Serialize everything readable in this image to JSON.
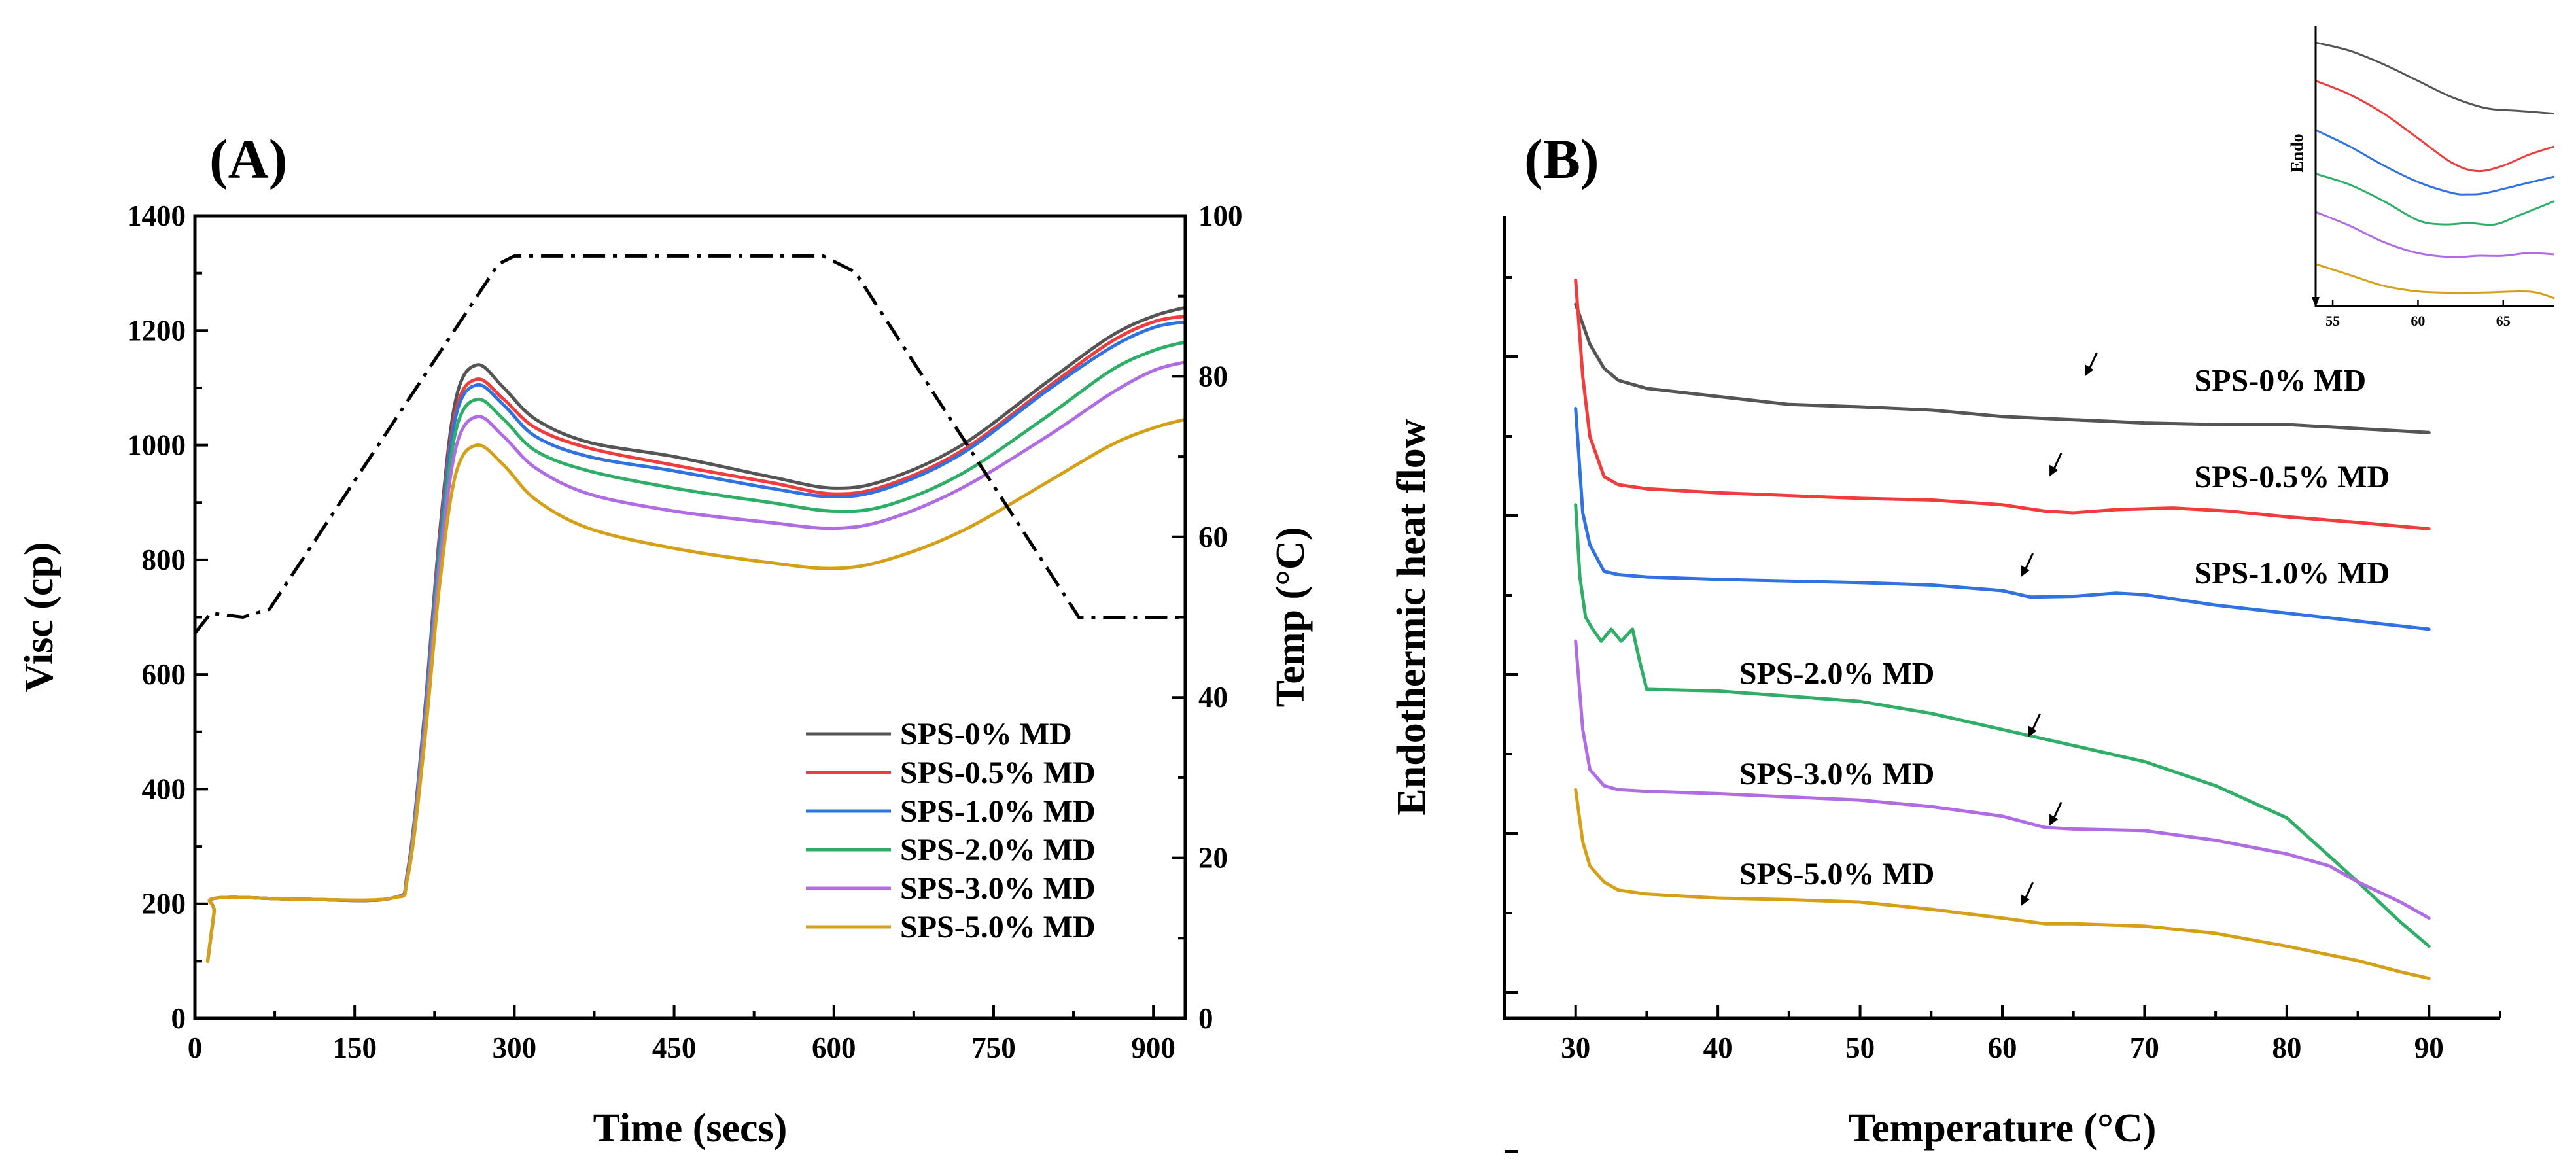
{
  "colors": {
    "SPS-0% MD": "#555555",
    "SPS-0.5% MD": "#f03c3c",
    "SPS-1.0% MD": "#2f72e0",
    "SPS-2.0% MD": "#2fae67",
    "SPS-3.0% MD": "#b06de3",
    "SPS-5.0% MD": "#d4a017",
    "temperature": "#000000"
  },
  "chart_data": [
    {
      "panel": "(A)",
      "type": "line",
      "xlabel": "Time (secs)",
      "ylabel": "Visc (cp)",
      "y2label": "Temp (°C)",
      "xlim": [
        0,
        930
      ],
      "ylim": [
        0,
        1400
      ],
      "y2lim": [
        0,
        100
      ],
      "xticks": [
        0,
        150,
        300,
        450,
        600,
        750,
        900
      ],
      "yticks": [
        0,
        200,
        400,
        600,
        800,
        1000,
        1200,
        1400
      ],
      "y2ticks": [
        0,
        20,
        40,
        60,
        80,
        100
      ],
      "legend_position": "bottom-right",
      "series": [
        {
          "name": "SPS-0% MD",
          "x": [
            12,
            18,
            20,
            100,
            185,
            200,
            215,
            230,
            245,
            265,
            290,
            320,
            370,
            450,
            540,
            600,
            650,
            720,
            800,
            860,
            900,
            930
          ],
          "values": [
            100,
            185,
            210,
            208,
            210,
            260,
            520,
            850,
            1080,
            1140,
            1100,
            1045,
            1005,
            980,
            945,
            925,
            940,
            1000,
            1110,
            1190,
            1225,
            1240
          ]
        },
        {
          "name": "SPS-0.5% MD",
          "x": [
            12,
            18,
            20,
            100,
            185,
            200,
            215,
            230,
            245,
            265,
            290,
            320,
            370,
            450,
            540,
            600,
            650,
            720,
            800,
            860,
            900,
            930
          ],
          "values": [
            100,
            185,
            210,
            208,
            210,
            260,
            515,
            840,
            1060,
            1115,
            1080,
            1030,
            995,
            965,
            935,
            915,
            930,
            990,
            1100,
            1180,
            1215,
            1225
          ]
        },
        {
          "name": "SPS-1.0% MD",
          "x": [
            12,
            18,
            20,
            100,
            185,
            200,
            215,
            230,
            245,
            265,
            290,
            320,
            370,
            450,
            540,
            600,
            650,
            720,
            800,
            860,
            900,
            930
          ],
          "values": [
            100,
            185,
            210,
            208,
            210,
            258,
            510,
            830,
            1050,
            1105,
            1070,
            1015,
            980,
            955,
            925,
            910,
            925,
            985,
            1095,
            1170,
            1205,
            1215
          ]
        },
        {
          "name": "SPS-2.0% MD",
          "x": [
            12,
            18,
            20,
            100,
            185,
            200,
            215,
            230,
            245,
            265,
            290,
            320,
            370,
            450,
            540,
            600,
            650,
            720,
            800,
            860,
            900,
            930
          ],
          "values": [
            100,
            185,
            210,
            208,
            210,
            255,
            500,
            810,
            1025,
            1080,
            1045,
            990,
            955,
            925,
            900,
            885,
            895,
            950,
            1050,
            1130,
            1165,
            1180
          ]
        },
        {
          "name": "SPS-3.0% MD",
          "x": [
            12,
            18,
            20,
            100,
            185,
            200,
            215,
            230,
            245,
            265,
            290,
            320,
            370,
            450,
            540,
            600,
            650,
            720,
            800,
            860,
            900,
            930
          ],
          "values": [
            100,
            185,
            210,
            208,
            210,
            252,
            490,
            790,
            995,
            1050,
            1015,
            960,
            915,
            885,
            865,
            855,
            870,
            925,
            1015,
            1090,
            1130,
            1145
          ]
        },
        {
          "name": "SPS-5.0% MD",
          "x": [
            12,
            18,
            20,
            100,
            185,
            200,
            215,
            230,
            245,
            265,
            290,
            320,
            370,
            450,
            540,
            600,
            650,
            720,
            800,
            860,
            900,
            930
          ],
          "values": [
            100,
            185,
            210,
            208,
            210,
            248,
            470,
            760,
            950,
            1000,
            965,
            905,
            855,
            820,
            795,
            785,
            800,
            850,
            935,
            1000,
            1030,
            1045
          ]
        }
      ],
      "temperature_series": {
        "name": "Temperature",
        "axis": "right",
        "style": "dash-dot",
        "x": [
          0,
          15,
          45,
          70,
          285,
          300,
          590,
          620,
          830,
          930
        ],
        "values": [
          48,
          50.5,
          50,
          51,
          94,
          95,
          95,
          93,
          50,
          50
        ]
      }
    },
    {
      "panel": "(B)",
      "type": "line",
      "xlabel": "Temperature (°C)",
      "ylabel": "Endothermic heat flow",
      "xlim": [
        25,
        95
      ],
      "ylim": [
        0,
        100
      ],
      "xticks": [
        30,
        40,
        50,
        60,
        70,
        80,
        90
      ],
      "yticks": [],
      "series": [
        {
          "name": "SPS-0% MD",
          "label_at": [
            73.5,
            79.5
          ],
          "arrow_at": [
            66,
            80.5
          ],
          "x": [
            30,
            31,
            32,
            33,
            35,
            40,
            45,
            50,
            55,
            60,
            65,
            70,
            75,
            80,
            85,
            90
          ],
          "values": [
            89,
            84,
            81,
            79.5,
            78.5,
            77.5,
            76.5,
            76.2,
            75.8,
            75,
            74.6,
            74.2,
            74,
            74,
            73.5,
            73
          ]
        },
        {
          "name": "SPS-0.5% MD",
          "label_at": [
            73.5,
            67.5
          ],
          "arrow_at": [
            63.5,
            68
          ],
          "x": [
            30,
            30.5,
            31,
            32,
            33,
            35,
            40,
            50,
            55,
            60,
            63,
            65,
            68,
            72,
            76,
            80,
            85,
            90
          ],
          "values": [
            92,
            80,
            72.5,
            67.5,
            66.5,
            66,
            65.5,
            64.8,
            64.6,
            64,
            63.2,
            63,
            63.4,
            63.6,
            63.2,
            62.5,
            61.8,
            61
          ]
        },
        {
          "name": "SPS-1.0% MD",
          "label_at": [
            73.5,
            55.5
          ],
          "arrow_at": [
            61.5,
            55.5
          ],
          "x": [
            30,
            30.5,
            31,
            32,
            33,
            35,
            40,
            50,
            55,
            60,
            62,
            65,
            68,
            70,
            75,
            80,
            85,
            90
          ],
          "values": [
            76,
            63,
            59,
            55.7,
            55.3,
            55,
            54.7,
            54.3,
            54,
            53.3,
            52.5,
            52.6,
            53,
            52.8,
            51.5,
            50.5,
            49.5,
            48.5
          ]
        },
        {
          "name": "SPS-2.0% MD",
          "label_at": [
            41.5,
            43
          ],
          "arrow_at": [
            62,
            35.5
          ],
          "x": [
            30,
            30.3,
            30.7,
            31.2,
            31.8,
            32.5,
            33.2,
            34,
            34.5,
            35,
            40,
            50,
            55,
            60,
            65,
            70,
            75,
            80,
            85,
            88,
            90
          ],
          "values": [
            64,
            55,
            50,
            48.5,
            47,
            48.5,
            47,
            48.5,
            44.5,
            41,
            40.8,
            39.5,
            38,
            36,
            34,
            32,
            29,
            25,
            17,
            12,
            9
          ]
        },
        {
          "name": "SPS-3.0% MD",
          "label_at": [
            41.5,
            30.5
          ],
          "arrow_at": [
            63.5,
            24.5
          ],
          "x": [
            30,
            30.5,
            31,
            32,
            33,
            35,
            40,
            50,
            55,
            60,
            63,
            65,
            70,
            75,
            80,
            81,
            83,
            85,
            88,
            90
          ],
          "values": [
            47,
            36,
            31,
            29,
            28.5,
            28.3,
            28,
            27.2,
            26.4,
            25.2,
            23.8,
            23.6,
            23.4,
            22.2,
            20.5,
            20,
            19,
            17,
            14.5,
            12.5
          ]
        },
        {
          "name": "SPS-5.0% MD",
          "label_at": [
            41.5,
            18
          ],
          "arrow_at": [
            61.5,
            14.5
          ],
          "x": [
            30,
            30.5,
            31,
            32,
            33,
            35,
            40,
            45,
            50,
            55,
            60,
            63,
            65,
            70,
            75,
            80,
            85,
            88,
            90
          ],
          "values": [
            28.5,
            22,
            19,
            17,
            16,
            15.5,
            15,
            14.8,
            14.5,
            13.6,
            12.5,
            11.8,
            11.8,
            11.5,
            10.6,
            9,
            7.2,
            5.8,
            5
          ]
        }
      ],
      "inset": {
        "ylabel": "Endo",
        "xlim": [
          54,
          68
        ],
        "xticks": [
          55,
          60,
          65
        ],
        "series": [
          {
            "name": "SPS-0% MD",
            "x": [
              54,
              56,
              58,
              60,
              62,
              64,
              66,
              68
            ],
            "values": [
              94,
              91,
              86,
              80,
              74,
              70,
              69,
              68
            ]
          },
          {
            "name": "SPS-0.5% MD",
            "x": [
              54,
              56,
              58,
              60,
              62,
              63.5,
              65,
              66.5,
              68
            ],
            "values": [
              80,
              75,
              68,
              59,
              50,
              47,
              49,
              53,
              56
            ]
          },
          {
            "name": "SPS-1.0% MD",
            "x": [
              54,
              56,
              58,
              60,
              62,
              63,
              64,
              66,
              68
            ],
            "values": [
              62,
              56,
              49,
              43,
              39,
              38.5,
              39,
              42,
              45
            ]
          },
          {
            "name": "SPS-2.0% MD",
            "x": [
              54,
              56,
              58,
              60,
              61.5,
              63,
              64.5,
              66,
              68
            ],
            "values": [
              46,
              42,
              36,
              29,
              27.5,
              28,
              27.5,
              31,
              36
            ]
          },
          {
            "name": "SPS-3.0% MD",
            "x": [
              54,
              56,
              58,
              60,
              62,
              63.5,
              65,
              66.5,
              68
            ],
            "values": [
              32,
              27,
              21,
              17,
              15.5,
              16,
              16,
              17,
              16.5
            ]
          },
          {
            "name": "SPS-5.0% MD",
            "x": [
              54,
              56,
              58,
              60,
              62,
              64,
              66,
              67,
              68
            ],
            "values": [
              13,
              9,
              5,
              3,
              2.5,
              2.6,
              3,
              2.5,
              0.5
            ]
          }
        ]
      }
    }
  ]
}
